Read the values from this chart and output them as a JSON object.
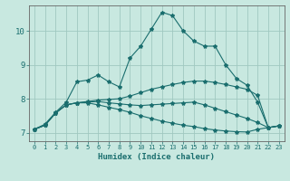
{
  "xlabel": "Humidex (Indice chaleur)",
  "xlim": [
    -0.5,
    23.5
  ],
  "ylim": [
    6.75,
    10.75
  ],
  "bg_color": "#c8e8e0",
  "line_color": "#1a6e6e",
  "grid_color": "#a0c8c0",
  "xticks": [
    0,
    1,
    2,
    3,
    4,
    5,
    6,
    7,
    8,
    9,
    10,
    11,
    12,
    13,
    14,
    15,
    16,
    17,
    18,
    19,
    20,
    21,
    22,
    23
  ],
  "yticks": [
    7,
    8,
    9,
    10
  ],
  "curve1_x": [
    0,
    1,
    2,
    3,
    4,
    5,
    6,
    7,
    8,
    9,
    10,
    11,
    12,
    13,
    14,
    15,
    16,
    17,
    18,
    19,
    20,
    21,
    22,
    23
  ],
  "curve1_y": [
    7.1,
    7.25,
    7.6,
    7.9,
    8.5,
    8.55,
    8.7,
    8.5,
    8.35,
    9.2,
    9.55,
    10.05,
    10.55,
    10.45,
    10.0,
    9.7,
    9.55,
    9.55,
    9.0,
    8.6,
    8.4,
    7.9,
    7.15,
    7.2
  ],
  "curve2_x": [
    0,
    1,
    2,
    3,
    4,
    5,
    6,
    7,
    8,
    9,
    10,
    11,
    12,
    13,
    14,
    15,
    16,
    17,
    18,
    19,
    20,
    21,
    22,
    23
  ],
  "curve2_y": [
    7.1,
    7.22,
    7.58,
    7.82,
    7.88,
    7.92,
    7.96,
    7.98,
    8.0,
    8.08,
    8.18,
    8.28,
    8.35,
    8.42,
    8.48,
    8.52,
    8.52,
    8.48,
    8.42,
    8.35,
    8.28,
    8.1,
    7.15,
    7.2
  ],
  "curve3_x": [
    0,
    1,
    2,
    3,
    4,
    5,
    6,
    7,
    8,
    9,
    10,
    11,
    12,
    13,
    14,
    15,
    16,
    17,
    18,
    19,
    20,
    21,
    22,
    23
  ],
  "curve3_y": [
    7.1,
    7.22,
    7.58,
    7.82,
    7.88,
    7.9,
    7.92,
    7.88,
    7.85,
    7.82,
    7.8,
    7.82,
    7.84,
    7.86,
    7.88,
    7.9,
    7.82,
    7.72,
    7.62,
    7.52,
    7.42,
    7.3,
    7.15,
    7.2
  ],
  "curve4_x": [
    0,
    1,
    2,
    3,
    4,
    5,
    6,
    7,
    8,
    9,
    10,
    11,
    12,
    13,
    14,
    15,
    16,
    17,
    18,
    19,
    20,
    21,
    22,
    23
  ],
  "curve4_y": [
    7.1,
    7.22,
    7.58,
    7.82,
    7.88,
    7.88,
    7.82,
    7.75,
    7.68,
    7.6,
    7.5,
    7.42,
    7.34,
    7.28,
    7.22,
    7.18,
    7.12,
    7.08,
    7.05,
    7.03,
    7.02,
    7.1,
    7.15,
    7.2
  ]
}
